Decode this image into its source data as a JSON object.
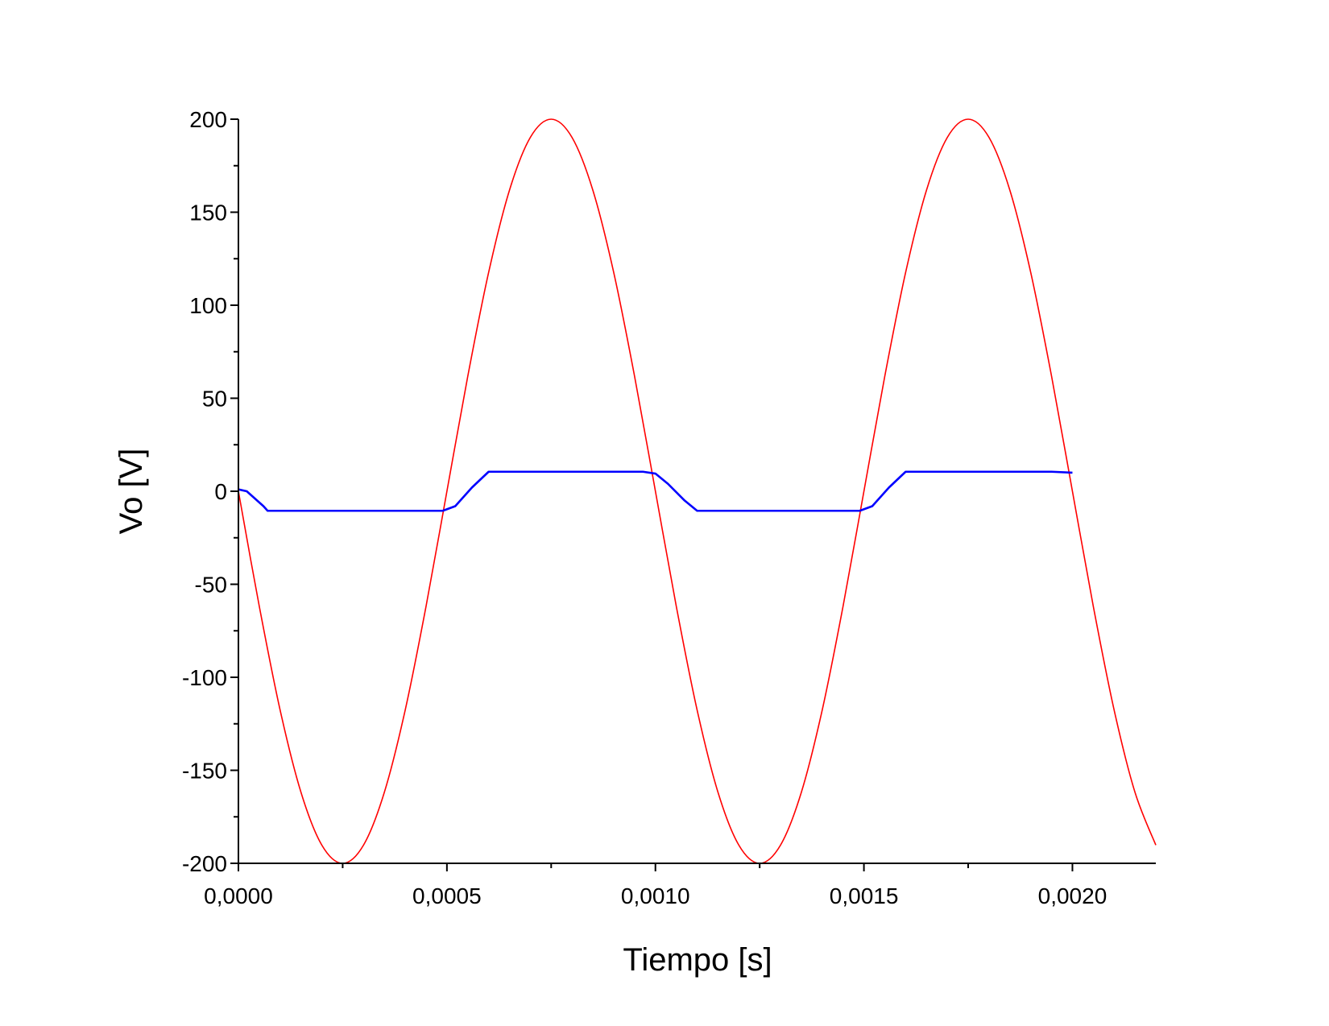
{
  "chart_data": {
    "type": "line",
    "xlabel": "Tiempo [s]",
    "ylabel": "Vo [V]",
    "xlim": [
      0,
      0.0022
    ],
    "ylim": [
      -200,
      200
    ],
    "x_ticks": [
      0,
      0.0005,
      0.001,
      0.0015,
      0.002
    ],
    "x_tick_labels": [
      "0,0000",
      "0,0005",
      "0,0010",
      "0,0015",
      "0,0020"
    ],
    "y_ticks": [
      -200,
      -150,
      -100,
      -50,
      0,
      50,
      100,
      150,
      200
    ],
    "y_tick_labels": [
      "-200",
      "-150",
      "-100",
      "-50",
      "0",
      "50",
      "100",
      "150",
      "200"
    ],
    "grid": false,
    "series": [
      {
        "color": "#ff0000",
        "x": [
          0,
          5e-05,
          0.0001,
          0.00015,
          0.0002,
          0.00025,
          0.0003,
          0.00035,
          0.0004,
          0.00045,
          0.0005,
          0.00055,
          0.0006,
          0.00065,
          0.0007,
          0.00075,
          0.0008,
          0.00085,
          0.0009,
          0.00095,
          0.001,
          0.00105,
          0.0011,
          0.00115,
          0.0012,
          0.00125,
          0.0013,
          0.00135,
          0.0014,
          0.00145,
          0.0015,
          0.00155,
          0.0016,
          0.00165,
          0.0017,
          0.00175,
          0.0018,
          0.00185,
          0.0019,
          0.00195,
          0.002,
          0.00205,
          0.0021,
          0.00215,
          0.0022
        ],
        "y": [
          0,
          -61.8,
          -117.6,
          -161.8,
          -190.2,
          -200,
          -190.2,
          -161.8,
          -117.6,
          -61.8,
          0,
          61.8,
          117.6,
          161.8,
          190.2,
          200,
          190.2,
          161.8,
          117.6,
          61.8,
          0,
          -61.8,
          -117.6,
          -161.8,
          -190.2,
          -200,
          -190.2,
          -161.8,
          -117.6,
          -61.8,
          0,
          61.8,
          117.6,
          161.8,
          190.2,
          200,
          190.2,
          161.8,
          117.6,
          61.8,
          0,
          -61.8,
          -117.6,
          -161.8,
          -190.2
        ]
      },
      {
        "color": "#0000ff",
        "x": [
          0,
          2e-05,
          4e-05,
          6e-05,
          7e-05,
          0.0003,
          0.00049,
          0.00052,
          0.00056,
          0.0006,
          0.0008,
          0.00097,
          0.001,
          0.00103,
          0.00107,
          0.0011,
          0.0013,
          0.00149,
          0.00152,
          0.00156,
          0.0016,
          0.0018,
          0.00195,
          0.002
        ],
        "y": [
          1,
          0,
          -4,
          -8,
          -10.5,
          -10.5,
          -10.5,
          -8,
          2,
          10.5,
          10.5,
          10.5,
          9.5,
          4,
          -5,
          -10.5,
          -10.5,
          -10.5,
          -8,
          2,
          10.5,
          10.5,
          10.5,
          10
        ]
      }
    ]
  }
}
